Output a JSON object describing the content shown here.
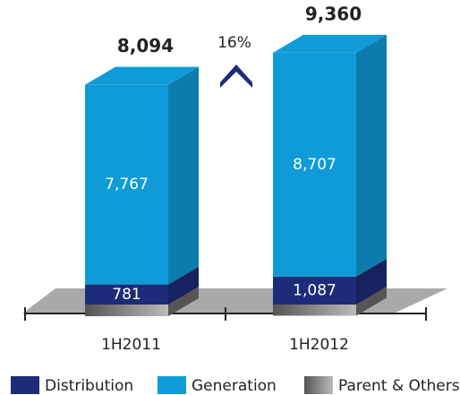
{
  "chart_data": {
    "type": "bar3d_stacked",
    "categories": [
      "1H2011",
      "1H2012"
    ],
    "series": [
      {
        "name": "Parent & Others",
        "color": "#8a8a8a",
        "values": [
          -454,
          -434
        ]
      },
      {
        "name": "Distribution",
        "color": "#1d2c78",
        "values": [
          781,
          1087
        ],
        "value_labels": [
          "781",
          "1,087"
        ]
      },
      {
        "name": "Generation",
        "color": "#0f9bd8",
        "values": [
          7767,
          8707
        ],
        "value_labels": [
          "7,767",
          "8,707"
        ]
      }
    ],
    "totals": [
      8094,
      9360
    ],
    "total_labels": [
      "8,094",
      "9,360"
    ],
    "annotation": "16%",
    "legend_order": [
      1,
      2,
      0
    ]
  }
}
